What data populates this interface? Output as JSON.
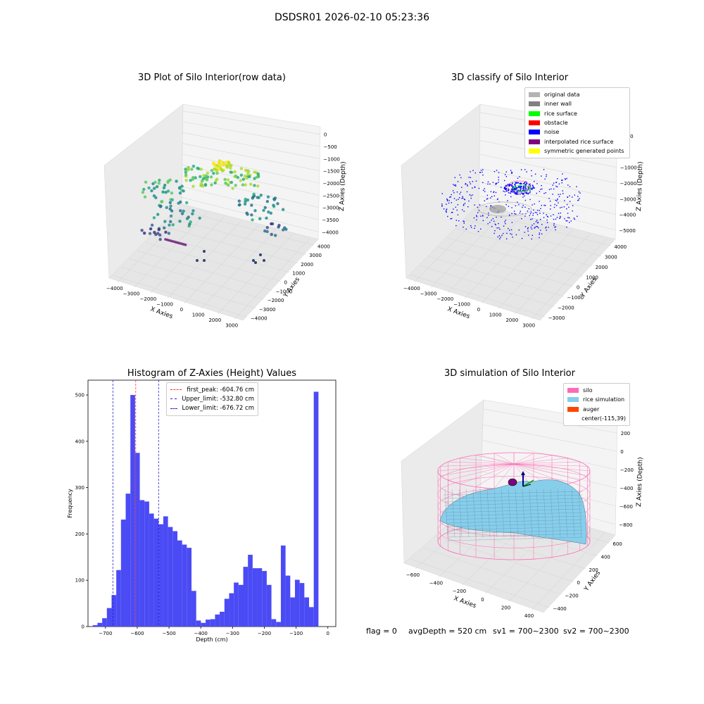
{
  "suptitle": "DSDSR01 2026-02-10 05:23:36",
  "footer": {
    "flag": "flag = 0",
    "avg_depth": "avgDepth = 520 cm",
    "sv1": "sv1 = 700~2300",
    "sv2": "sv2 = 700~2300"
  },
  "colors": {
    "hist_bar": "#4b4bf5",
    "peak_line": "#ff3333",
    "limit_line": "#2222cc",
    "silo": "#ff69b4",
    "rice_simulation": "#87ceeb",
    "auger": "#ff4500",
    "original_data": "#b3b3b3",
    "inner_wall": "#808080",
    "rice_surface": "#00ff00",
    "obstacle": "#ff0000",
    "noise": "#0000ff",
    "interpolated_rice_surface": "#800080",
    "symmetric_generated_points": "#ffff00"
  },
  "chart_data": [
    {
      "type": "scatter",
      "title": "3D Plot of Silo Interior(row data)",
      "xlabel": "X Axies",
      "ylabel": "Y Axies",
      "zlabel": "Z Axies (Depth)",
      "x_ticks": [
        "−4000",
        "−3000",
        "−2000",
        "−1000",
        "0",
        "1000",
        "2000",
        "3000"
      ],
      "y_ticks": [
        "−4000",
        "−3000",
        "−2000",
        "−1000",
        "0",
        "1000",
        "2000",
        "3000",
        "4000"
      ],
      "z_ticks": [
        "0",
        "−500",
        "−1000",
        "−1500",
        "−2000",
        "−2500",
        "−3000",
        "−3500",
        "−4000"
      ],
      "xlim": [
        -4200,
        3200
      ],
      "ylim": [
        -4200,
        4200
      ],
      "zlim": [
        -4200,
        200
      ],
      "colormap": "viridis"
    },
    {
      "type": "scatter",
      "title": "3D classify of Silo Interior",
      "xlabel": "X Axies",
      "ylabel": "Y Axies",
      "zlabel": "Z Axies (Depth)",
      "x_ticks": [
        "−4000",
        "−3000",
        "−2000",
        "−1000",
        "0",
        "1000",
        "2000",
        "3000"
      ],
      "y_ticks": [
        "−3000",
        "−2000",
        "−1000",
        "0",
        "1000",
        "2000",
        "3000",
        "4000"
      ],
      "z_ticks": [
        "1000",
        "0",
        "−1000",
        "−2000",
        "−3000",
        "−4000",
        "−5000"
      ],
      "legend": [
        {
          "label": "original data",
          "color": "#b3b3b3"
        },
        {
          "label": "inner wall",
          "color": "#808080"
        },
        {
          "label": "rice surface",
          "color": "#00ff00"
        },
        {
          "label": "obstacle",
          "color": "#ff0000"
        },
        {
          "label": "noise",
          "color": "#0000ff"
        },
        {
          "label": "interpolated rice surface",
          "color": "#800080"
        },
        {
          "label": "symmetric generated points",
          "color": "#ffff00"
        }
      ],
      "legend_position": "top-right"
    },
    {
      "type": "bar",
      "title": "Histogram of Z-Axies (Height) Values",
      "xlabel": "Depth (cm)",
      "ylabel": "Frequency",
      "xlim": [
        -755,
        25
      ],
      "ylim": [
        0,
        532
      ],
      "x_ticks": [
        -700,
        -600,
        -500,
        -400,
        -300,
        -200,
        -100,
        0
      ],
      "x_tick_labels": [
        "−700",
        "−600",
        "−500",
        "−400",
        "−300",
        "−200",
        "−100",
        "0"
      ],
      "y_ticks": [
        0,
        100,
        200,
        300,
        400,
        500
      ],
      "bin_width": 14.8,
      "bin_start": -740,
      "values": [
        3,
        8,
        18,
        40,
        68,
        122,
        231,
        287,
        500,
        375,
        273,
        270,
        244,
        233,
        221,
        238,
        215,
        206,
        186,
        177,
        170,
        77,
        13,
        8,
        15,
        16,
        26,
        32,
        60,
        72,
        95,
        90,
        129,
        155,
        126,
        126,
        120,
        90,
        16,
        10,
        175,
        110,
        63,
        101,
        94,
        63,
        42,
        507
      ],
      "reference_lines": [
        {
          "name": "first_peak: -604.76 cm",
          "x": -604.76,
          "color": "#ff3333"
        },
        {
          "name": "Upper_limit: -532.80 cm",
          "x": -532.8,
          "color": "#2222cc"
        },
        {
          "name": "Lower_limit: -676.72 cm",
          "x": -676.72,
          "color": "#2222cc"
        }
      ],
      "legend_position": "top-center"
    },
    {
      "type": "surface",
      "title": "3D simulation of Silo Interior",
      "xlabel": "X Axies",
      "ylabel": "Y Axies",
      "zlabel": "Z Axies (Depth)",
      "x_ticks": [
        "−600",
        "−400",
        "−200",
        "0",
        "200",
        "400"
      ],
      "y_ticks": [
        "−400",
        "−200",
        "0",
        "200",
        "400",
        "600"
      ],
      "z_ticks": [
        "200",
        "0",
        "−200",
        "−400",
        "−600",
        "−800"
      ],
      "legend": [
        {
          "label": "silo",
          "color": "#ff69b4"
        },
        {
          "label": "rice simulation",
          "color": "#87ceeb"
        },
        {
          "label": "auger",
          "color": "#ff4500"
        },
        {
          "label": "center(-115,39)",
          "color": ""
        }
      ],
      "legend_position": "top-right"
    }
  ]
}
